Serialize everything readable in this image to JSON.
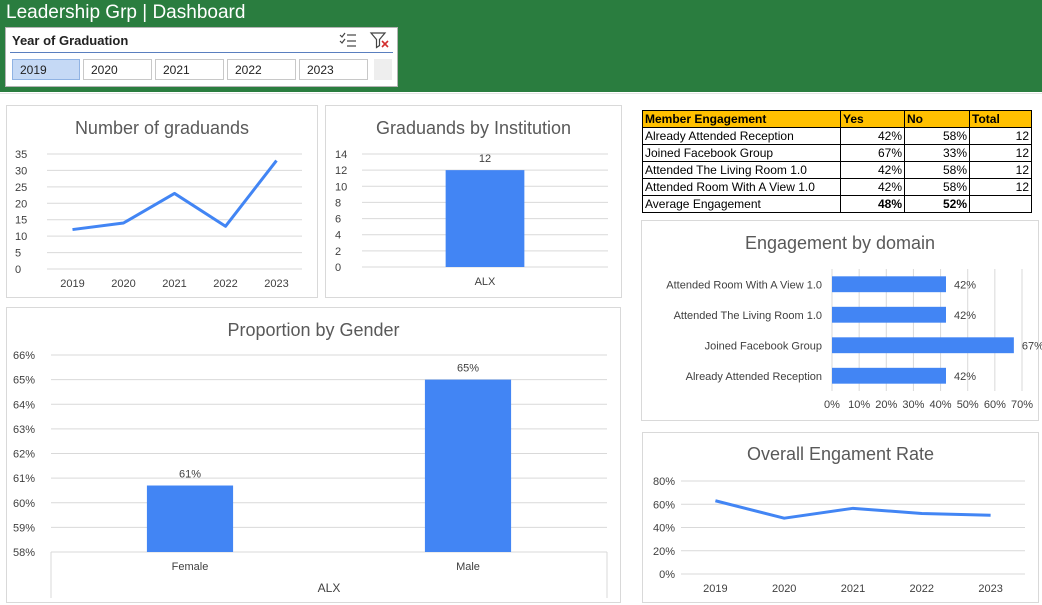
{
  "header": {
    "title": "Leadership Grp | Dashboard",
    "bg_color": "#2a7d3f"
  },
  "slicer": {
    "title": "Year of Graduation",
    "options": [
      {
        "label": "2019",
        "selected": true
      },
      {
        "label": "2020",
        "selected": false
      },
      {
        "label": "2021",
        "selected": false
      },
      {
        "label": "2022",
        "selected": false
      },
      {
        "label": "2023",
        "selected": false
      }
    ],
    "icons": [
      "multi-select-icon",
      "clear-filter-icon"
    ]
  },
  "engagement_table": {
    "headers": [
      "Member Engagement",
      "Yes",
      "No",
      "Total"
    ],
    "rows": [
      [
        "Already Attended Reception",
        "42%",
        "58%",
        "12"
      ],
      [
        "Joined Facebook Group",
        "67%",
        "33%",
        "12"
      ],
      [
        "Attended The Living Room 1.0",
        "42%",
        "58%",
        "12"
      ],
      [
        "Attended Room With A View 1.0",
        "42%",
        "58%",
        "12"
      ]
    ],
    "average": [
      "Average Engagement",
      "48%",
      "52%",
      ""
    ]
  },
  "chart_data": [
    {
      "id": "graduands",
      "type": "line",
      "title": "Number of graduands",
      "categories": [
        "2019",
        "2020",
        "2021",
        "2022",
        "2023"
      ],
      "values": [
        12,
        14,
        23,
        13,
        33
      ],
      "yticks": [
        "0",
        "5",
        "10",
        "15",
        "20",
        "25",
        "30",
        "35"
      ],
      "ylim": [
        0,
        35
      ],
      "grid": true,
      "color": "#4285f4"
    },
    {
      "id": "institution",
      "type": "bar",
      "title": "Graduands by Institution",
      "categories": [
        "ALX"
      ],
      "values": [
        12
      ],
      "data_labels": [
        "12"
      ],
      "yticks": [
        "0",
        "2",
        "4",
        "6",
        "8",
        "10",
        "12",
        "14"
      ],
      "ylim": [
        0,
        14
      ],
      "grid": true,
      "color": "#4285f4"
    },
    {
      "id": "gender",
      "type": "bar",
      "title": "Proportion by Gender",
      "categories": [
        "Female",
        "Male"
      ],
      "group_label": "ALX",
      "values": [
        0.607,
        0.65
      ],
      "data_labels": [
        "61%",
        "65%"
      ],
      "yticks": [
        "58%",
        "59%",
        "60%",
        "61%",
        "62%",
        "63%",
        "64%",
        "65%",
        "66%"
      ],
      "ylim": [
        0.58,
        0.66
      ],
      "grid": true,
      "color": "#4285f4"
    },
    {
      "id": "domain",
      "type": "bar",
      "orientation": "horizontal",
      "title": "Engagement by domain",
      "categories": [
        "Attended Room With A View 1.0",
        "Attended The Living Room 1.0",
        "Joined Facebook Group",
        "Already Attended Reception"
      ],
      "values": [
        0.42,
        0.42,
        0.67,
        0.42
      ],
      "data_labels": [
        "42%",
        "42%",
        "67%",
        "42%"
      ],
      "xticks": [
        "0%",
        "10%",
        "20%",
        "30%",
        "40%",
        "50%",
        "60%",
        "70%"
      ],
      "xlim": [
        0,
        0.7
      ],
      "grid": true,
      "color": "#4285f4"
    },
    {
      "id": "overall",
      "type": "line",
      "title": "Overall Engament Rate",
      "categories": [
        "2019",
        "2020",
        "2021",
        "2022",
        "2023"
      ],
      "values": [
        0.63,
        0.48,
        0.565,
        0.52,
        0.505
      ],
      "yticks": [
        "0%",
        "20%",
        "40%",
        "60%",
        "80%"
      ],
      "ylim": [
        0,
        0.8
      ],
      "grid": true,
      "color": "#4285f4"
    }
  ]
}
